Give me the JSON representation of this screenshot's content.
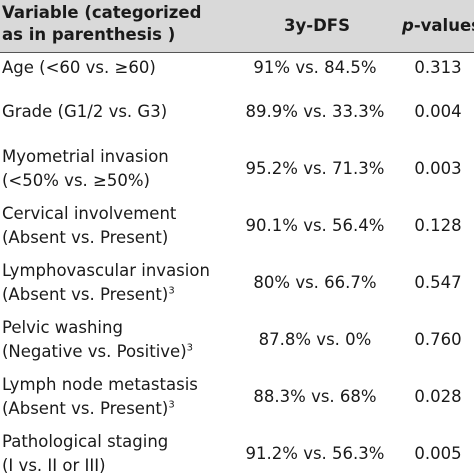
{
  "header": {
    "variable_line1": "Variable (categorized",
    "variable_line2": "as in parenthesis )",
    "dfs": "3y-DFS",
    "p_italic": "p",
    "p_rest": "-values"
  },
  "rows": [
    {
      "var1": "Age (<60 vs. ≥60)",
      "var2": "",
      "sup": "",
      "dfs": "91% vs. 84.5%",
      "p": "0.313"
    },
    {
      "var1": "Grade (G1/2 vs. G3)",
      "var2": "",
      "sup": "",
      "dfs": "89.9% vs. 33.3%",
      "p": "0.004"
    },
    {
      "var1": "Myometrial invasion",
      "var2": "(<50% vs. ≥50%)",
      "sup": "",
      "dfs": "95.2% vs. 71.3%",
      "p": "0.003"
    },
    {
      "var1": "Cervical involvement",
      "var2": "(Absent vs. Present)",
      "sup": "",
      "dfs": "90.1% vs. 56.4%",
      "p": "0.128"
    },
    {
      "var1": "Lymphovascular invasion",
      "var2": "(Absent vs. Present)",
      "sup": "3",
      "dfs": "80% vs. 66.7%",
      "p": "0.547"
    },
    {
      "var1": "Pelvic washing",
      "var2": "(Negative vs. Positive)",
      "sup": "3",
      "dfs": "87.8% vs. 0%",
      "p": "0.760"
    },
    {
      "var1": "Lymph node metastasis",
      "var2": "(Absent vs. Present)",
      "sup": "3",
      "dfs": "88.3% vs. 68%",
      "p": "0.028"
    },
    {
      "var1": "Pathological staging",
      "var2": "(I vs. II or III)",
      "sup": "",
      "dfs": "91.2% vs. 56.3%",
      "p": "0.005"
    }
  ]
}
